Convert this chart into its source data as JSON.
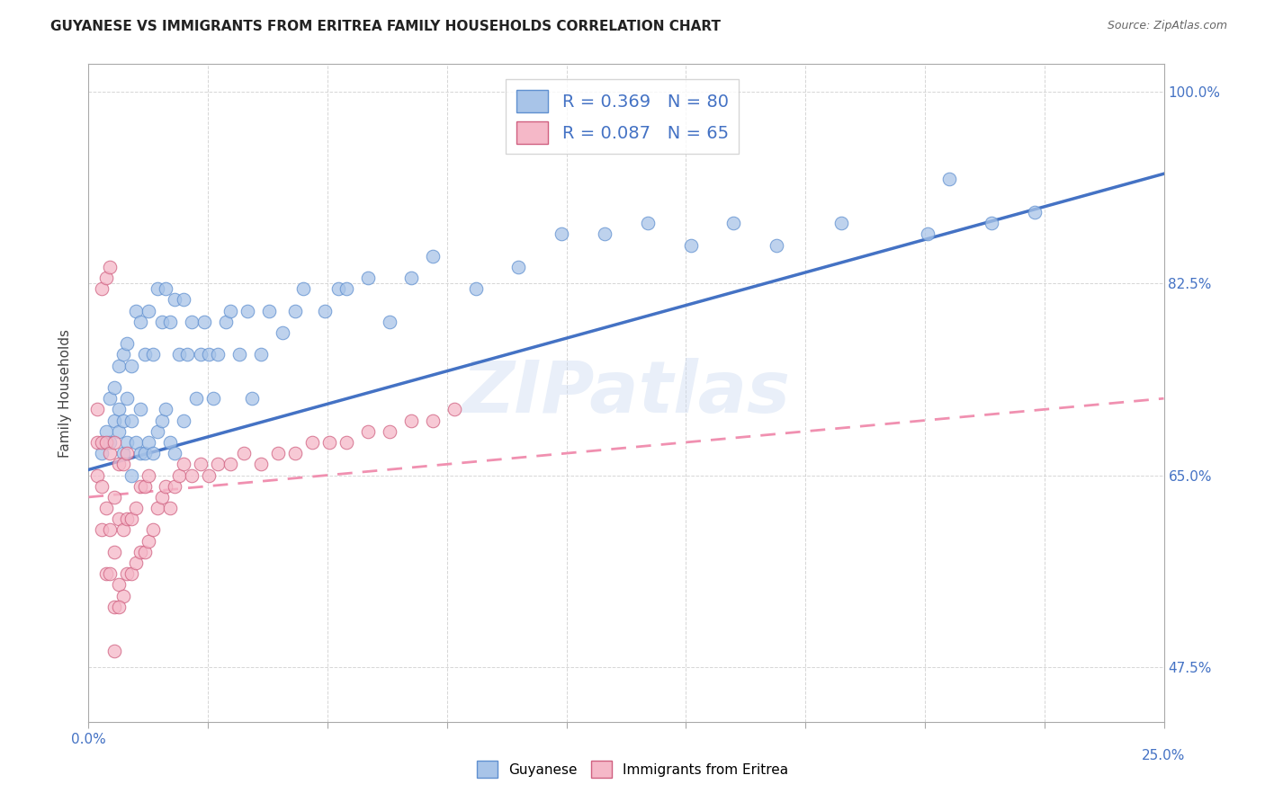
{
  "title": "GUYANESE VS IMMIGRANTS FROM ERITREA FAMILY HOUSEHOLDS CORRELATION CHART",
  "source": "Source: ZipAtlas.com",
  "ylabel": "Family Households",
  "xlim": [
    0.0,
    0.25
  ],
  "ylim": [
    0.425,
    1.025
  ],
  "R_blue": 0.369,
  "N_blue": 80,
  "R_pink": 0.087,
  "N_pink": 65,
  "blue_color": "#a8c4e8",
  "pink_color": "#f5b8c8",
  "blue_line_color": "#4472c4",
  "pink_line_color": "#f090b0",
  "blue_edge_color": "#6090d0",
  "pink_edge_color": "#d06080",
  "blue_line_y0": 0.655,
  "blue_line_y1": 0.925,
  "pink_line_y0": 0.63,
  "pink_line_y1": 0.72,
  "pink_line_x1": 0.25,
  "blue_scatter_x": [
    0.003,
    0.004,
    0.005,
    0.005,
    0.006,
    0.006,
    0.007,
    0.007,
    0.007,
    0.008,
    0.008,
    0.008,
    0.009,
    0.009,
    0.009,
    0.01,
    0.01,
    0.01,
    0.011,
    0.011,
    0.012,
    0.012,
    0.012,
    0.013,
    0.013,
    0.014,
    0.014,
    0.015,
    0.015,
    0.016,
    0.016,
    0.017,
    0.017,
    0.018,
    0.018,
    0.019,
    0.019,
    0.02,
    0.02,
    0.021,
    0.022,
    0.022,
    0.023,
    0.024,
    0.025,
    0.026,
    0.027,
    0.028,
    0.029,
    0.03,
    0.032,
    0.033,
    0.035,
    0.037,
    0.038,
    0.04,
    0.042,
    0.045,
    0.048,
    0.05,
    0.055,
    0.058,
    0.06,
    0.065,
    0.07,
    0.075,
    0.08,
    0.09,
    0.1,
    0.11,
    0.12,
    0.13,
    0.14,
    0.15,
    0.16,
    0.175,
    0.195,
    0.2,
    0.21,
    0.22
  ],
  "blue_scatter_y": [
    0.67,
    0.69,
    0.68,
    0.72,
    0.7,
    0.73,
    0.69,
    0.71,
    0.75,
    0.67,
    0.7,
    0.76,
    0.68,
    0.72,
    0.77,
    0.65,
    0.7,
    0.75,
    0.68,
    0.8,
    0.67,
    0.71,
    0.79,
    0.67,
    0.76,
    0.68,
    0.8,
    0.67,
    0.76,
    0.69,
    0.82,
    0.7,
    0.79,
    0.71,
    0.82,
    0.68,
    0.79,
    0.67,
    0.81,
    0.76,
    0.7,
    0.81,
    0.76,
    0.79,
    0.72,
    0.76,
    0.79,
    0.76,
    0.72,
    0.76,
    0.79,
    0.8,
    0.76,
    0.8,
    0.72,
    0.76,
    0.8,
    0.78,
    0.8,
    0.82,
    0.8,
    0.82,
    0.82,
    0.83,
    0.79,
    0.83,
    0.85,
    0.82,
    0.84,
    0.87,
    0.87,
    0.88,
    0.86,
    0.88,
    0.86,
    0.88,
    0.87,
    0.92,
    0.88,
    0.89
  ],
  "pink_scatter_x": [
    0.002,
    0.002,
    0.002,
    0.003,
    0.003,
    0.003,
    0.004,
    0.004,
    0.004,
    0.005,
    0.005,
    0.005,
    0.006,
    0.006,
    0.006,
    0.006,
    0.007,
    0.007,
    0.007,
    0.008,
    0.008,
    0.008,
    0.009,
    0.009,
    0.009,
    0.01,
    0.01,
    0.011,
    0.011,
    0.012,
    0.012,
    0.013,
    0.013,
    0.014,
    0.014,
    0.015,
    0.016,
    0.017,
    0.018,
    0.019,
    0.02,
    0.021,
    0.022,
    0.024,
    0.026,
    0.028,
    0.03,
    0.033,
    0.036,
    0.04,
    0.044,
    0.048,
    0.052,
    0.056,
    0.06,
    0.065,
    0.07,
    0.075,
    0.08,
    0.085,
    0.003,
    0.004,
    0.005,
    0.006,
    0.007
  ],
  "pink_scatter_y": [
    0.65,
    0.68,
    0.71,
    0.6,
    0.64,
    0.68,
    0.56,
    0.62,
    0.68,
    0.56,
    0.6,
    0.67,
    0.53,
    0.58,
    0.63,
    0.68,
    0.55,
    0.61,
    0.66,
    0.54,
    0.6,
    0.66,
    0.56,
    0.61,
    0.67,
    0.56,
    0.61,
    0.57,
    0.62,
    0.58,
    0.64,
    0.58,
    0.64,
    0.59,
    0.65,
    0.6,
    0.62,
    0.63,
    0.64,
    0.62,
    0.64,
    0.65,
    0.66,
    0.65,
    0.66,
    0.65,
    0.66,
    0.66,
    0.67,
    0.66,
    0.67,
    0.67,
    0.68,
    0.68,
    0.68,
    0.69,
    0.69,
    0.7,
    0.7,
    0.71,
    0.82,
    0.83,
    0.84,
    0.49,
    0.53
  ]
}
